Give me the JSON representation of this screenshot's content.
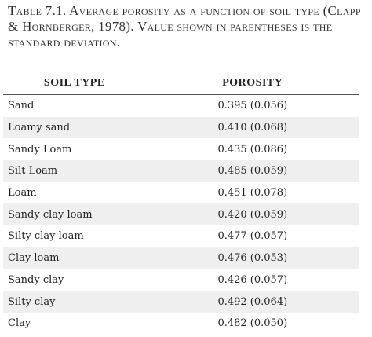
{
  "caption": "Table 7.1. Average porosity as a function of soil type (Clapp & Hornberger, 1978). Value shown in parentheses is the standard deviation.",
  "table": {
    "headers": [
      "SOIL TYPE",
      "POROSITY"
    ],
    "rows": [
      [
        "Sand",
        "0.395 (0.056)"
      ],
      [
        "Loamy sand",
        "0.410 (0.068)"
      ],
      [
        "Sandy Loam",
        "0.435 (0.086)"
      ],
      [
        "Silt Loam",
        "0.485 (0.059)"
      ],
      [
        "Loam",
        "0.451 (0.078)"
      ],
      [
        "Sandy clay loam",
        "0.420 (0.059)"
      ],
      [
        "Silty clay loam",
        "0.477 (0.057)"
      ],
      [
        "Clay loam",
        "0.476 (0.053)"
      ],
      [
        "Sandy clay",
        "0.426 (0.057)"
      ],
      [
        "Silty clay",
        "0.492 (0.064)"
      ],
      [
        "Clay",
        "0.482 (0.050)"
      ]
    ]
  }
}
